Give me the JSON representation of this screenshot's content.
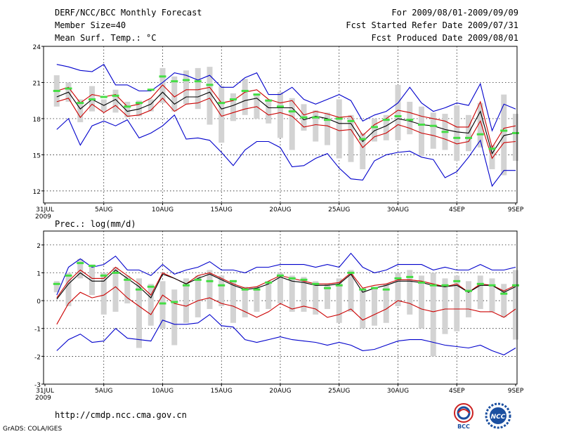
{
  "header": {
    "title": "DERF/NCC/BCC Monthly Forecast",
    "member_size": "Member Size=40",
    "variable": "Mean Surf. Temp.: °C",
    "period": "For 2009/08/01-2009/09/09",
    "started": "Fcst Started Refer Date 2009/07/31",
    "produced": "Fcst Produced Date 2009/08/01"
  },
  "footer": {
    "url": "http://cmdp.ncc.cma.gov.cn",
    "grads": "GrADS: COLA/IGES",
    "logo1_text": "BCC",
    "logo2_text": "NCC"
  },
  "colors": {
    "max_line": "#0000cc",
    "min_line": "#0000cc",
    "spread_line": "#cc0000",
    "mean_line": "#000000",
    "box": "#d3d3d3",
    "marker": "#44dd44"
  },
  "chart_data": [
    {
      "type": "line",
      "title": "Mean Surf. Temp.: °C",
      "ylim": [
        11,
        24
      ],
      "yticks": [
        12,
        15,
        18,
        21,
        24
      ],
      "xticks": [
        {
          "day": 0,
          "label": "31JUL",
          "sub": "2009"
        },
        {
          "day": 5,
          "label": "5AUG"
        },
        {
          "day": 10,
          "label": "10AUG"
        },
        {
          "day": 15,
          "label": "15AUG"
        },
        {
          "day": 20,
          "label": "20AUG"
        },
        {
          "day": 25,
          "label": "25AUG"
        },
        {
          "day": 30,
          "label": "30AUG"
        },
        {
          "day": 35,
          "label": "4SEP"
        },
        {
          "day": 40,
          "label": "9SEP"
        }
      ],
      "days": [
        1,
        2,
        3,
        4,
        5,
        6,
        7,
        8,
        9,
        10,
        11,
        12,
        13,
        14,
        15,
        16,
        17,
        18,
        19,
        20,
        21,
        22,
        23,
        24,
        25,
        26,
        27,
        28,
        29,
        30,
        31,
        32,
        33,
        34,
        35,
        36,
        37,
        38,
        39,
        40
      ],
      "series": [
        {
          "name": "max",
          "values": [
            22.5,
            22.3,
            22.0,
            21.9,
            22.5,
            20.8,
            20.8,
            20.3,
            20.3,
            21.0,
            21.8,
            21.6,
            21.2,
            21.6,
            20.6,
            20.6,
            21.4,
            21.8,
            20.0,
            20.0,
            20.6,
            19.6,
            19.2,
            19.6,
            20.0,
            19.5,
            17.8,
            18.3,
            18.6,
            19.3,
            20.6,
            19.3,
            18.6,
            18.9,
            19.3,
            19.1,
            20.9,
            17.0,
            19.2,
            18.8
          ]
        },
        {
          "name": "spread_high",
          "values": [
            20.3,
            20.6,
            19.3,
            20.0,
            19.8,
            20.0,
            19.0,
            19.2,
            19.7,
            20.8,
            19.8,
            20.4,
            20.4,
            20.6,
            19.3,
            19.5,
            20.2,
            20.4,
            19.6,
            19.3,
            19.5,
            18.3,
            18.6,
            18.4,
            18.1,
            18.2,
            16.6,
            17.5,
            18.0,
            18.7,
            18.5,
            18.2,
            18.0,
            17.8,
            17.3,
            17.3,
            19.4,
            15.6,
            17.2,
            17.4
          ]
        },
        {
          "name": "mean",
          "values": [
            19.8,
            20.2,
            18.8,
            19.6,
            19.1,
            19.6,
            18.6,
            18.8,
            19.2,
            20.2,
            19.2,
            19.8,
            19.8,
            20.2,
            18.8,
            19.1,
            19.5,
            19.7,
            18.9,
            18.9,
            18.9,
            17.9,
            18.2,
            18.0,
            17.6,
            17.6,
            16.1,
            17.0,
            17.4,
            18.0,
            17.8,
            17.5,
            17.4,
            17.1,
            16.9,
            16.8,
            18.6,
            15.1,
            16.6,
            16.8
          ]
        },
        {
          "name": "spread_low",
          "values": [
            19.4,
            19.7,
            18.1,
            19.2,
            18.5,
            19.1,
            18.2,
            18.3,
            18.7,
            19.7,
            18.6,
            19.2,
            19.3,
            19.7,
            18.2,
            18.5,
            18.8,
            19.0,
            18.3,
            18.5,
            18.2,
            17.3,
            17.5,
            17.4,
            17.0,
            17.1,
            15.6,
            16.5,
            16.8,
            17.5,
            17.2,
            16.8,
            16.6,
            16.3,
            15.9,
            16.1,
            17.8,
            14.7,
            16.0,
            16.1
          ]
        },
        {
          "name": "min",
          "values": [
            17.1,
            18.0,
            15.8,
            17.4,
            17.8,
            17.4,
            17.9,
            16.4,
            16.8,
            17.4,
            18.3,
            16.3,
            16.4,
            16.2,
            15.2,
            14.1,
            15.4,
            16.1,
            16.1,
            15.6,
            14.0,
            14.1,
            14.7,
            15.1,
            13.9,
            13.0,
            12.9,
            14.5,
            15.0,
            15.2,
            15.3,
            14.8,
            14.6,
            13.1,
            13.6,
            14.8,
            16.2,
            12.4,
            13.7,
            13.7
          ]
        }
      ],
      "boxes": [
        {
          "low": 19.0,
          "high": 21.6
        },
        {
          "low": 19.4,
          "high": 21.0
        },
        {
          "low": 17.7,
          "high": 19.6
        },
        {
          "low": 18.6,
          "high": 20.7
        },
        {
          "low": 18.6,
          "high": 19.6
        },
        {
          "low": 18.5,
          "high": 20.4
        },
        {
          "low": 18.1,
          "high": 19.4
        },
        {
          "low": 18.2,
          "high": 19.5
        },
        {
          "low": 18.6,
          "high": 19.6
        },
        {
          "low": 19.3,
          "high": 22.2
        },
        {
          "low": 18.6,
          "high": 21.5
        },
        {
          "low": 19.2,
          "high": 22.0
        },
        {
          "low": 18.8,
          "high": 22.2
        },
        {
          "low": 17.5,
          "high": 22.3
        },
        {
          "low": 16.0,
          "high": 20.7
        },
        {
          "low": 17.8,
          "high": 20.1
        },
        {
          "low": 18.3,
          "high": 21.3
        },
        {
          "low": 18.0,
          "high": 20.0
        },
        {
          "low": 17.6,
          "high": 19.6
        },
        {
          "low": 16.4,
          "high": 20.2
        },
        {
          "low": 15.4,
          "high": 19.7
        },
        {
          "low": 17.0,
          "high": 19.2
        },
        {
          "low": 16.1,
          "high": 18.7
        },
        {
          "low": 15.8,
          "high": 18.5
        },
        {
          "low": 14.7,
          "high": 19.6
        },
        {
          "low": 14.4,
          "high": 18.3
        },
        {
          "low": 13.8,
          "high": 16.8
        },
        {
          "low": 16.1,
          "high": 18.0
        },
        {
          "low": 16.2,
          "high": 18.3
        },
        {
          "low": 16.2,
          "high": 20.8
        },
        {
          "low": 16.7,
          "high": 19.4
        },
        {
          "low": 14.9,
          "high": 19.0
        },
        {
          "low": 15.5,
          "high": 18.5
        },
        {
          "low": 15.4,
          "high": 18.4
        },
        {
          "low": 14.5,
          "high": 19.1
        },
        {
          "low": 15.3,
          "high": 18.3
        },
        {
          "low": 15.6,
          "high": 19.3
        },
        {
          "low": 13.8,
          "high": 15.8
        },
        {
          "low": 13.3,
          "high": 20.0
        },
        {
          "low": 14.5,
          "high": 18.4
        }
      ],
      "markers": [
        20.3,
        20.5,
        19.3,
        19.6,
        19.8,
        19.9,
        19.0,
        19.3,
        20.4,
        21.5,
        21.1,
        21.2,
        21.1,
        20.8,
        19.3,
        19.6,
        20.3,
        20.0,
        19.5,
        19.0,
        18.6,
        18.1,
        18.1,
        17.9,
        18.0,
        17.8,
        16.3,
        17.3,
        17.9,
        18.2,
        17.9,
        17.5,
        17.4,
        16.9,
        16.4,
        16.4,
        16.7,
        15.5,
        17.0,
        16.8
      ]
    },
    {
      "type": "line",
      "title": "Prec.: log(mm/d)",
      "ylim": [
        -3,
        2.5
      ],
      "yticks": [
        -3,
        -2,
        -1,
        0,
        1,
        2
      ],
      "xticks": [
        {
          "day": 0,
          "label": "31JUL",
          "sub": "2009"
        },
        {
          "day": 5,
          "label": "5AUG"
        },
        {
          "day": 10,
          "label": "10AUG"
        },
        {
          "day": 15,
          "label": "15AUG"
        },
        {
          "day": 20,
          "label": "20AUG"
        },
        {
          "day": 25,
          "label": "25AUG"
        },
        {
          "day": 30,
          "label": "30AUG"
        },
        {
          "day": 35,
          "label": "4SEP"
        },
        {
          "day": 40,
          "label": "9SEP"
        }
      ],
      "days": [
        1,
        2,
        3,
        4,
        5,
        6,
        7,
        8,
        9,
        10,
        11,
        12,
        13,
        14,
        15,
        16,
        17,
        18,
        19,
        20,
        21,
        22,
        23,
        24,
        25,
        26,
        27,
        28,
        29,
        30,
        31,
        32,
        33,
        34,
        35,
        36,
        37,
        38,
        39,
        40
      ],
      "series": [
        {
          "name": "max",
          "values": [
            0.2,
            1.2,
            1.5,
            1.2,
            1.3,
            1.6,
            1.1,
            1.1,
            0.9,
            1.3,
            0.95,
            1.1,
            1.2,
            1.4,
            1.1,
            1.1,
            1.0,
            1.2,
            1.2,
            1.3,
            1.3,
            1.3,
            1.2,
            1.3,
            1.2,
            1.7,
            1.2,
            1.0,
            1.1,
            1.3,
            1.3,
            1.3,
            1.1,
            1.2,
            1.1,
            1.1,
            1.3,
            1.1,
            1.1,
            1.2
          ]
        },
        {
          "name": "spread_high",
          "values": [
            0.1,
            0.7,
            1.1,
            0.8,
            0.8,
            1.2,
            0.9,
            0.6,
            0.2,
            1.0,
            0.8,
            0.6,
            0.9,
            1.0,
            0.8,
            0.6,
            0.45,
            0.5,
            0.7,
            0.9,
            0.8,
            0.7,
            0.6,
            0.6,
            0.65,
            1.0,
            0.45,
            0.55,
            0.6,
            0.75,
            0.75,
            0.7,
            0.6,
            0.5,
            0.6,
            0.3,
            0.6,
            0.55,
            0.35,
            0.55
          ]
        },
        {
          "name": "mean",
          "values": [
            0.05,
            0.6,
            1.0,
            0.7,
            0.7,
            1.1,
            0.8,
            0.5,
            0.1,
            0.95,
            0.8,
            0.6,
            0.8,
            0.95,
            0.75,
            0.55,
            0.4,
            0.45,
            0.6,
            0.85,
            0.7,
            0.65,
            0.55,
            0.55,
            0.6,
            0.95,
            0.3,
            0.45,
            0.55,
            0.7,
            0.7,
            0.65,
            0.55,
            0.5,
            0.55,
            0.3,
            0.55,
            0.55,
            0.3,
            0.5
          ]
        },
        {
          "name": "spread_low",
          "values": [
            -0.85,
            -0.1,
            0.3,
            0.1,
            0.2,
            0.5,
            0.1,
            -0.2,
            -0.5,
            0.2,
            -0.1,
            -0.2,
            0.0,
            0.1,
            -0.1,
            -0.2,
            -0.4,
            -0.6,
            -0.4,
            -0.1,
            -0.3,
            -0.2,
            -0.3,
            -0.6,
            -0.5,
            -0.3,
            -0.7,
            -0.5,
            -0.3,
            0.0,
            -0.1,
            -0.3,
            -0.4,
            -0.3,
            -0.3,
            -0.3,
            -0.4,
            -0.4,
            -0.6,
            -0.3
          ]
        },
        {
          "name": "min",
          "values": [
            -1.8,
            -1.4,
            -1.2,
            -1.5,
            -1.45,
            -1.0,
            -1.35,
            -1.4,
            -1.45,
            -0.7,
            -0.85,
            -0.85,
            -0.8,
            -0.5,
            -0.9,
            -0.95,
            -1.4,
            -1.5,
            -1.4,
            -1.3,
            -1.4,
            -1.45,
            -1.5,
            -1.6,
            -1.5,
            -1.6,
            -1.8,
            -1.75,
            -1.6,
            -1.45,
            -1.4,
            -1.4,
            -1.5,
            -1.6,
            -1.65,
            -1.7,
            -1.6,
            -1.8,
            -1.95,
            -1.7
          ]
        }
      ],
      "boxes": [
        {
          "low": 0.3,
          "high": 0.7
        },
        {
          "low": -0.2,
          "high": 1.0
        },
        {
          "low": 0.8,
          "high": 1.5
        },
        {
          "low": 0.2,
          "high": 1.3
        },
        {
          "low": -0.5,
          "high": 1.0
        },
        {
          "low": -0.4,
          "high": 1.2
        },
        {
          "low": -0.1,
          "high": 0.9
        },
        {
          "low": -1.7,
          "high": 0.8
        },
        {
          "low": -0.9,
          "high": 0.6
        },
        {
          "low": -1.0,
          "high": 0.7
        },
        {
          "low": -1.6,
          "high": 0.4
        },
        {
          "low": -0.8,
          "high": 0.8
        },
        {
          "low": -0.6,
          "high": 0.9
        },
        {
          "low": -0.3,
          "high": 1.1
        },
        {
          "low": -0.2,
          "high": 0.9
        },
        {
          "low": -0.8,
          "high": 0.7
        },
        {
          "low": -0.6,
          "high": 0.5
        },
        {
          "low": -0.4,
          "high": 0.5
        },
        {
          "low": -0.3,
          "high": 0.7
        },
        {
          "low": -0.1,
          "high": 1.0
        },
        {
          "low": -0.4,
          "high": 0.9
        },
        {
          "low": -0.4,
          "high": 0.85
        },
        {
          "low": -0.5,
          "high": 0.7
        },
        {
          "low": -0.3,
          "high": 0.6
        },
        {
          "low": -0.8,
          "high": 0.8
        },
        {
          "low": -0.4,
          "high": 1.1
        },
        {
          "low": -1.0,
          "high": 0.4
        },
        {
          "low": -0.9,
          "high": 0.5
        },
        {
          "low": -0.8,
          "high": 0.6
        },
        {
          "low": -0.2,
          "high": 1.0
        },
        {
          "low": -0.5,
          "high": 1.1
        },
        {
          "low": -1.0,
          "high": 0.9
        },
        {
          "low": -2.0,
          "high": 1.0
        },
        {
          "low": -1.2,
          "high": 0.8
        },
        {
          "low": -1.1,
          "high": 0.9
        },
        {
          "low": -0.6,
          "high": 0.7
        },
        {
          "low": -0.3,
          "high": 0.9
        },
        {
          "low": -0.4,
          "high": 0.8
        },
        {
          "low": -0.6,
          "high": 0.6
        },
        {
          "low": -1.4,
          "high": 1.1
        }
      ],
      "markers": [
        0.6,
        0.9,
        1.35,
        1.25,
        0.9,
        1.0,
        0.75,
        0.4,
        0.5,
        -0.1,
        -0.05,
        0.55,
        0.75,
        0.7,
        0.55,
        0.7,
        0.4,
        0.4,
        0.65,
        0.9,
        0.8,
        0.75,
        0.6,
        0.45,
        0.55,
        1.0,
        0.4,
        0.45,
        0.4,
        0.8,
        0.85,
        0.65,
        0.55,
        0.55,
        0.7,
        0.35,
        0.6,
        0.55,
        0.25,
        0.55
      ]
    }
  ]
}
